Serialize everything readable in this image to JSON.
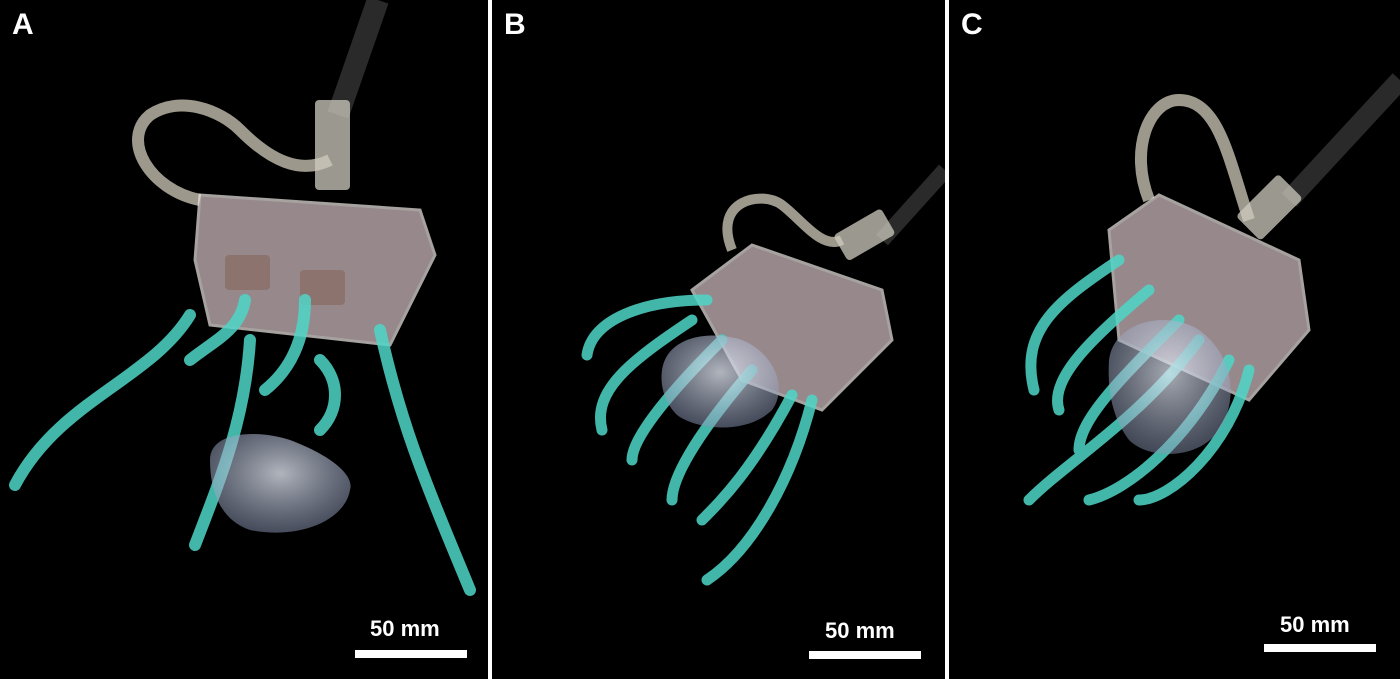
{
  "panels": [
    {
      "label": "A",
      "scale_text": "50 mm"
    },
    {
      "label": "B",
      "scale_text": "50 mm"
    },
    {
      "label": "C",
      "scale_text": "50 mm"
    }
  ],
  "colors": {
    "background": "#000000",
    "divider": "#ffffff",
    "tentacle": "#4fd6c8",
    "jellyfish": "#c9d3e6",
    "housing": "#d9c8cc"
  },
  "icons": [
    "gripper-device",
    "jellyfish",
    "tentacle",
    "tether-cable"
  ]
}
